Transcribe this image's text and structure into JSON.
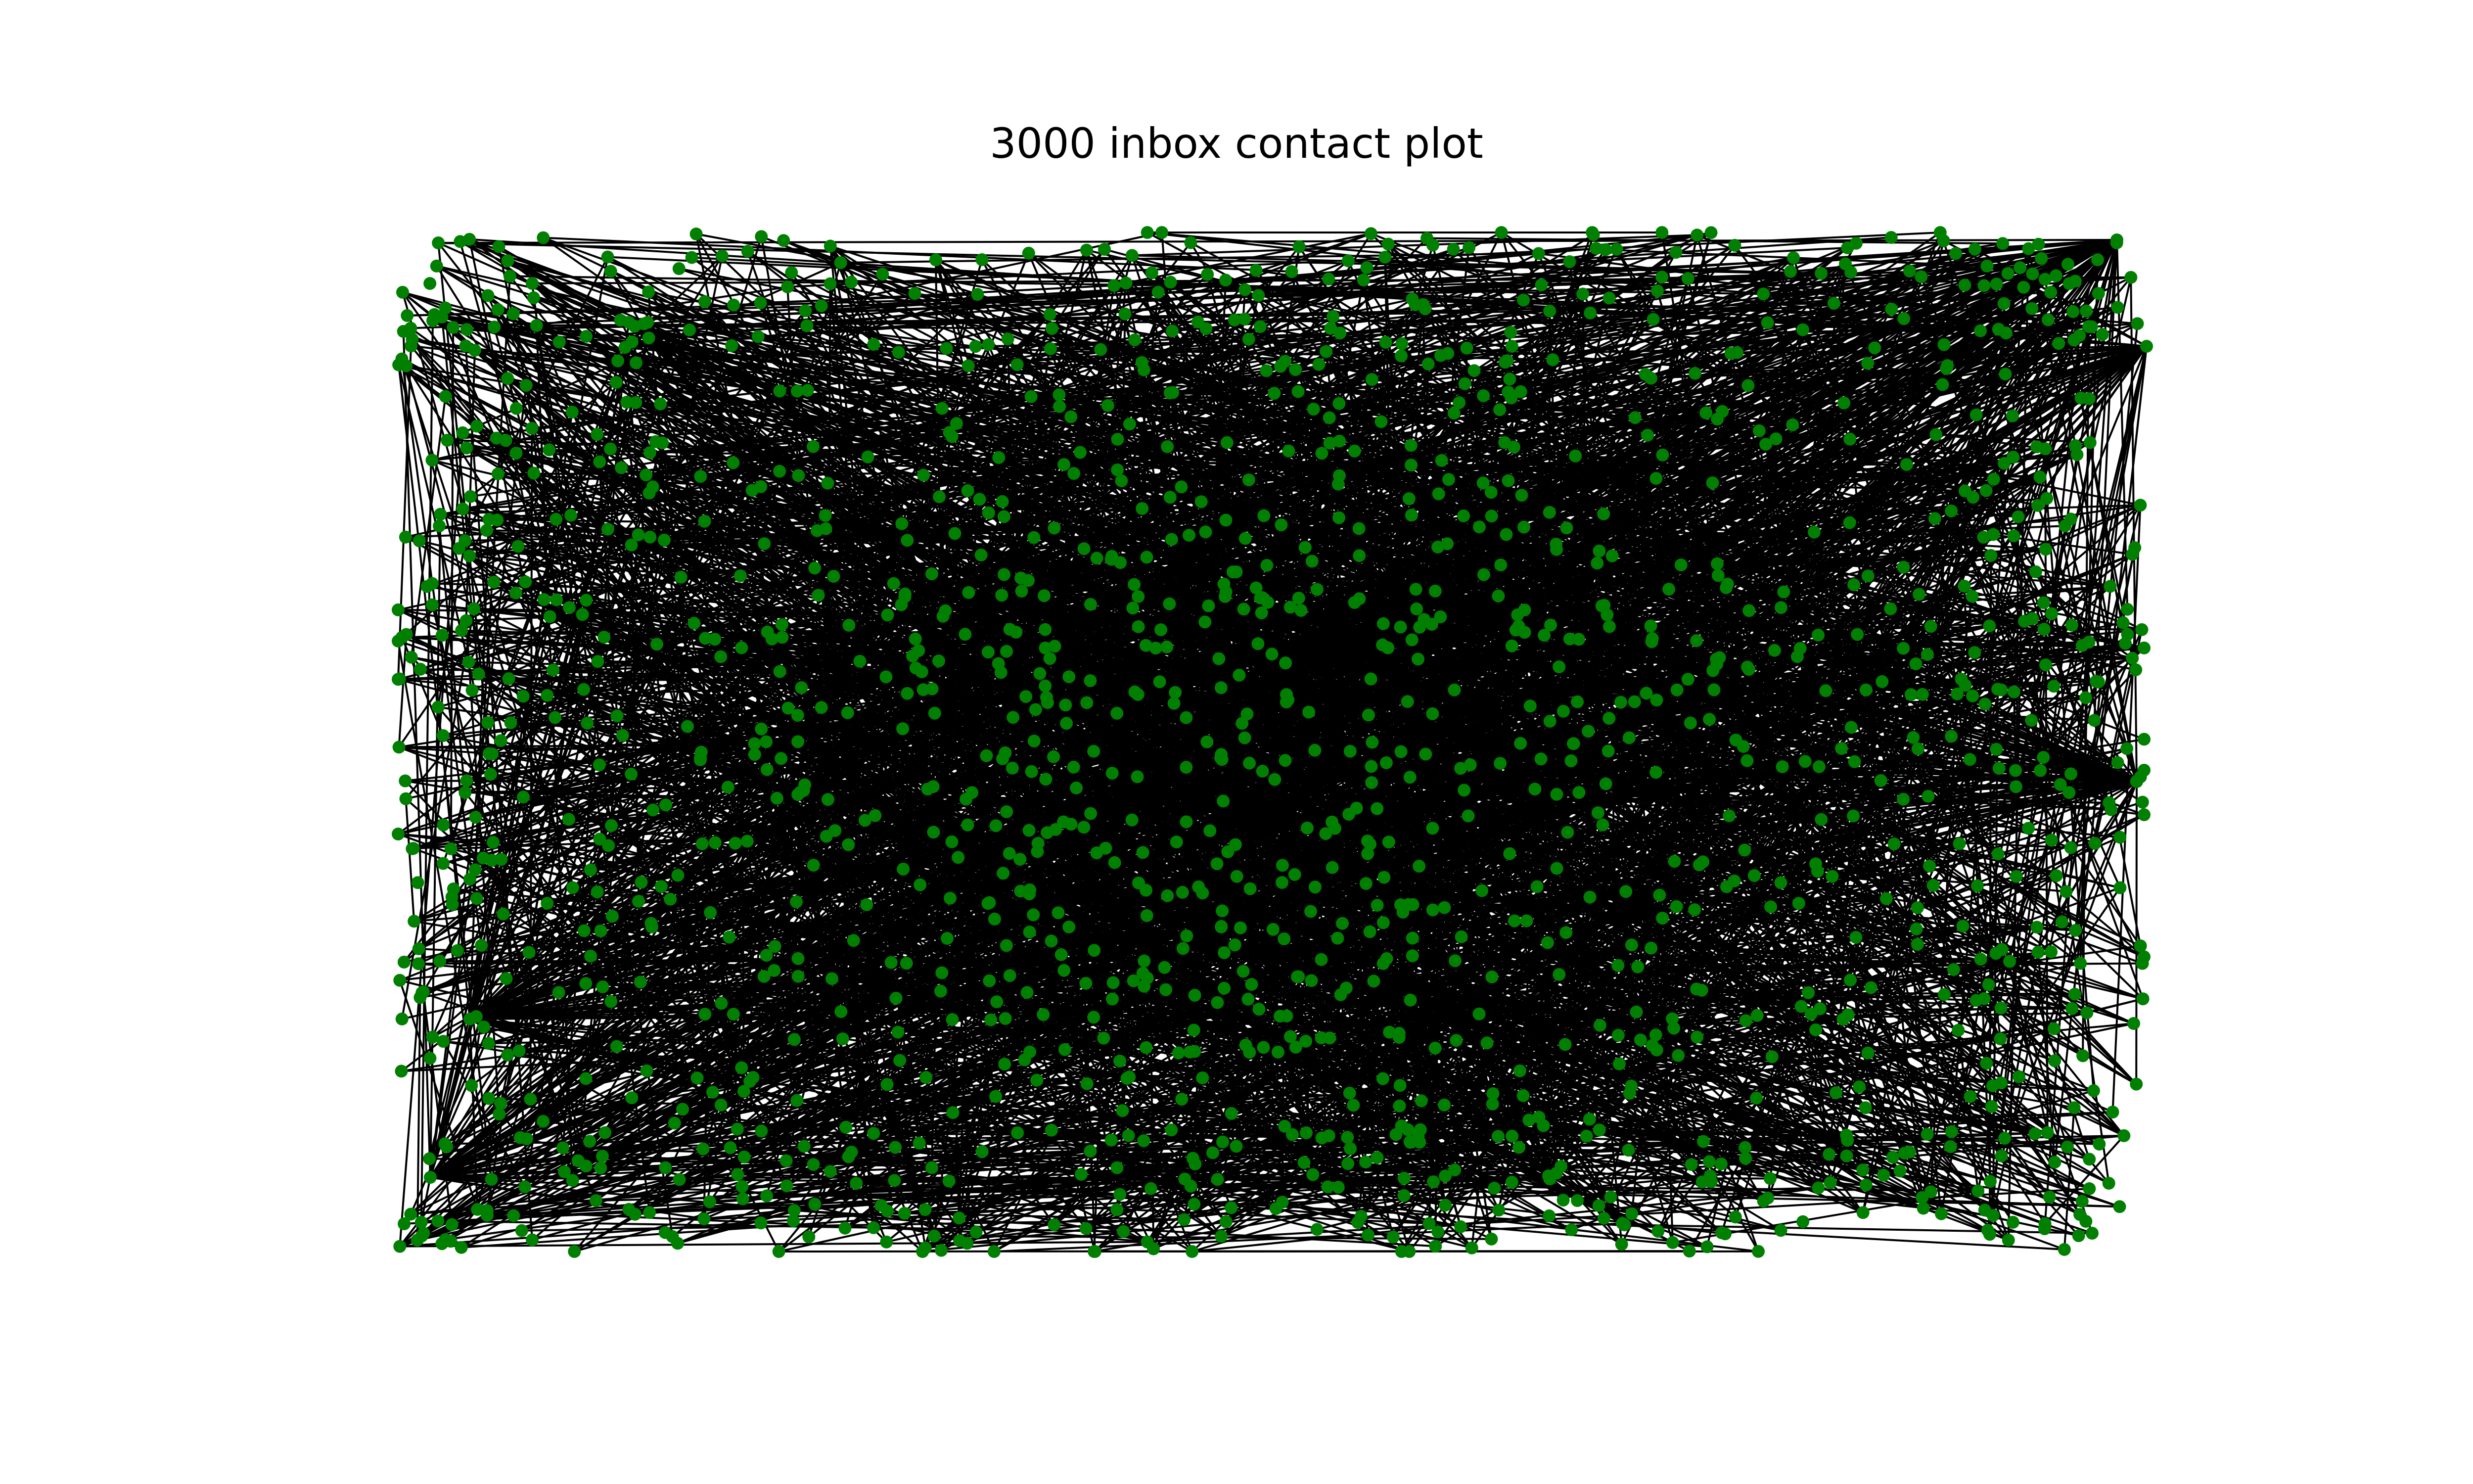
{
  "title": "3000 inbox contact plot",
  "graph": {
    "node_color": "#007f00",
    "edge_color": "#000000",
    "background": "#ffffff"
  }
}
